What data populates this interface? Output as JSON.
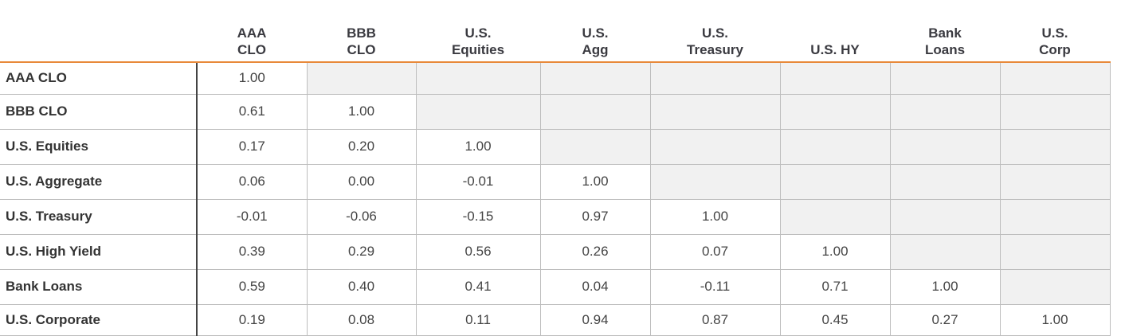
{
  "chart_data": {
    "type": "table",
    "columns": [
      [
        "AAA",
        "CLO"
      ],
      [
        "BBB",
        "CLO"
      ],
      [
        "U.S.",
        "Equities"
      ],
      [
        "U.S.",
        "Agg"
      ],
      [
        "U.S.",
        "Treasury"
      ],
      [
        "U.S. HY"
      ],
      [
        "Bank",
        "Loans"
      ],
      [
        "U.S.",
        "Corp"
      ]
    ],
    "rows": [
      {
        "label": "AAA CLO",
        "values": [
          "1.00"
        ]
      },
      {
        "label": "BBB CLO",
        "values": [
          "0.61",
          "1.00"
        ]
      },
      {
        "label": "U.S. Equities",
        "values": [
          "0.17",
          "0.20",
          "1.00"
        ]
      },
      {
        "label": "U.S. Aggregate",
        "values": [
          "0.06",
          "0.00",
          "-0.01",
          "1.00"
        ]
      },
      {
        "label": "U.S. Treasury",
        "values": [
          "-0.01",
          "-0.06",
          "-0.15",
          "0.97",
          "1.00"
        ]
      },
      {
        "label": "U.S. High Yield",
        "values": [
          "0.39",
          "0.29",
          "0.56",
          "0.26",
          "0.07",
          "1.00"
        ]
      },
      {
        "label": "Bank Loans",
        "values": [
          "0.59",
          "0.40",
          "0.41",
          "0.04",
          "-0.11",
          "0.71",
          "1.00"
        ]
      },
      {
        "label": "U.S. Corporate",
        "values": [
          "0.19",
          "0.08",
          "0.11",
          "0.94",
          "0.87",
          "0.45",
          "0.27",
          "1.00"
        ]
      }
    ],
    "colors": {
      "header_rule": "#e8893a",
      "empty_cell": "#f1f1f1",
      "grid": "#bdbdbd"
    }
  }
}
